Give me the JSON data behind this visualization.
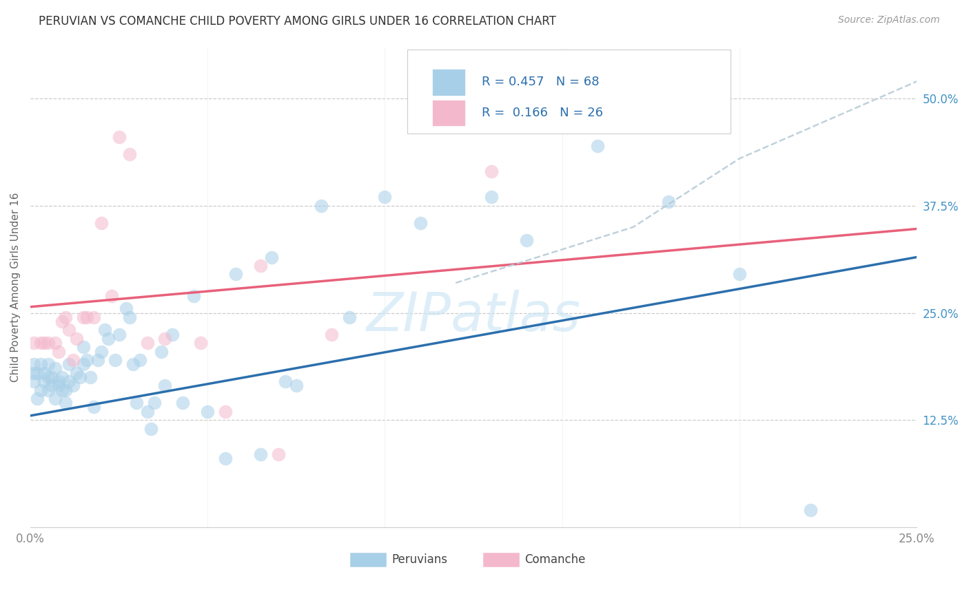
{
  "title": "PERUVIAN VS COMANCHE CHILD POVERTY AMONG GIRLS UNDER 16 CORRELATION CHART",
  "source": "Source: ZipAtlas.com",
  "ylabel": "Child Poverty Among Girls Under 16",
  "ytick_labels": [
    "12.5%",
    "25.0%",
    "37.5%",
    "50.0%"
  ],
  "ytick_values": [
    0.125,
    0.25,
    0.375,
    0.5
  ],
  "xtick_labels": [
    "0.0%",
    "25.0%"
  ],
  "xtick_values": [
    0.0,
    0.25
  ],
  "legend_label1": "Peruvians",
  "legend_label2": "Comanche",
  "R1": "0.457",
  "N1": "68",
  "R2": "0.166",
  "N2": "26",
  "color_blue": "#a8cfe8",
  "color_pink": "#f4b8cc",
  "line_blue": "#2c6fad",
  "line_pink": "#e8607a",
  "dashed_color": "#b8ccd8",
  "grid_color": "#cccccc",
  "xlim": [
    0.0,
    0.25
  ],
  "ylim": [
    0.0,
    0.56
  ],
  "peruvians_x": [
    0.001,
    0.001,
    0.001,
    0.002,
    0.002,
    0.003,
    0.003,
    0.004,
    0.004,
    0.005,
    0.005,
    0.005,
    0.006,
    0.006,
    0.007,
    0.007,
    0.008,
    0.008,
    0.009,
    0.009,
    0.01,
    0.01,
    0.011,
    0.011,
    0.012,
    0.013,
    0.014,
    0.015,
    0.015,
    0.016,
    0.017,
    0.018,
    0.019,
    0.02,
    0.021,
    0.022,
    0.024,
    0.025,
    0.027,
    0.028,
    0.029,
    0.03,
    0.031,
    0.033,
    0.034,
    0.035,
    0.037,
    0.038,
    0.04,
    0.043,
    0.046,
    0.05,
    0.055,
    0.058,
    0.065,
    0.068,
    0.072,
    0.075,
    0.082,
    0.09,
    0.1,
    0.11,
    0.13,
    0.14,
    0.16,
    0.18,
    0.2,
    0.22
  ],
  "peruvians_y": [
    0.19,
    0.17,
    0.18,
    0.18,
    0.15,
    0.16,
    0.19,
    0.17,
    0.18,
    0.16,
    0.175,
    0.19,
    0.165,
    0.175,
    0.15,
    0.185,
    0.165,
    0.17,
    0.16,
    0.175,
    0.145,
    0.16,
    0.17,
    0.19,
    0.165,
    0.18,
    0.175,
    0.19,
    0.21,
    0.195,
    0.175,
    0.14,
    0.195,
    0.205,
    0.23,
    0.22,
    0.195,
    0.225,
    0.255,
    0.245,
    0.19,
    0.145,
    0.195,
    0.135,
    0.115,
    0.145,
    0.205,
    0.165,
    0.225,
    0.145,
    0.27,
    0.135,
    0.08,
    0.295,
    0.085,
    0.315,
    0.17,
    0.165,
    0.375,
    0.245,
    0.385,
    0.355,
    0.385,
    0.335,
    0.445,
    0.38,
    0.295,
    0.02
  ],
  "comanche_x": [
    0.001,
    0.003,
    0.004,
    0.005,
    0.007,
    0.008,
    0.009,
    0.01,
    0.011,
    0.012,
    0.013,
    0.015,
    0.016,
    0.018,
    0.02,
    0.023,
    0.025,
    0.028,
    0.033,
    0.038,
    0.048,
    0.055,
    0.065,
    0.07,
    0.085,
    0.13
  ],
  "comanche_y": [
    0.215,
    0.215,
    0.215,
    0.215,
    0.215,
    0.205,
    0.24,
    0.245,
    0.23,
    0.195,
    0.22,
    0.245,
    0.245,
    0.245,
    0.355,
    0.27,
    0.455,
    0.435,
    0.215,
    0.22,
    0.215,
    0.135,
    0.305,
    0.085,
    0.225,
    0.415
  ],
  "blue_line_x0": 0.0,
  "blue_line_y0": 0.13,
  "blue_line_x1": 0.25,
  "blue_line_y1": 0.315,
  "pink_line_x0": 0.0,
  "pink_line_y0": 0.257,
  "pink_line_x1": 0.25,
  "pink_line_y1": 0.348,
  "dash_line_x0": 0.12,
  "dash_line_y0": 0.285,
  "dash_line_x1": 0.25,
  "dash_line_y1": 0.52
}
